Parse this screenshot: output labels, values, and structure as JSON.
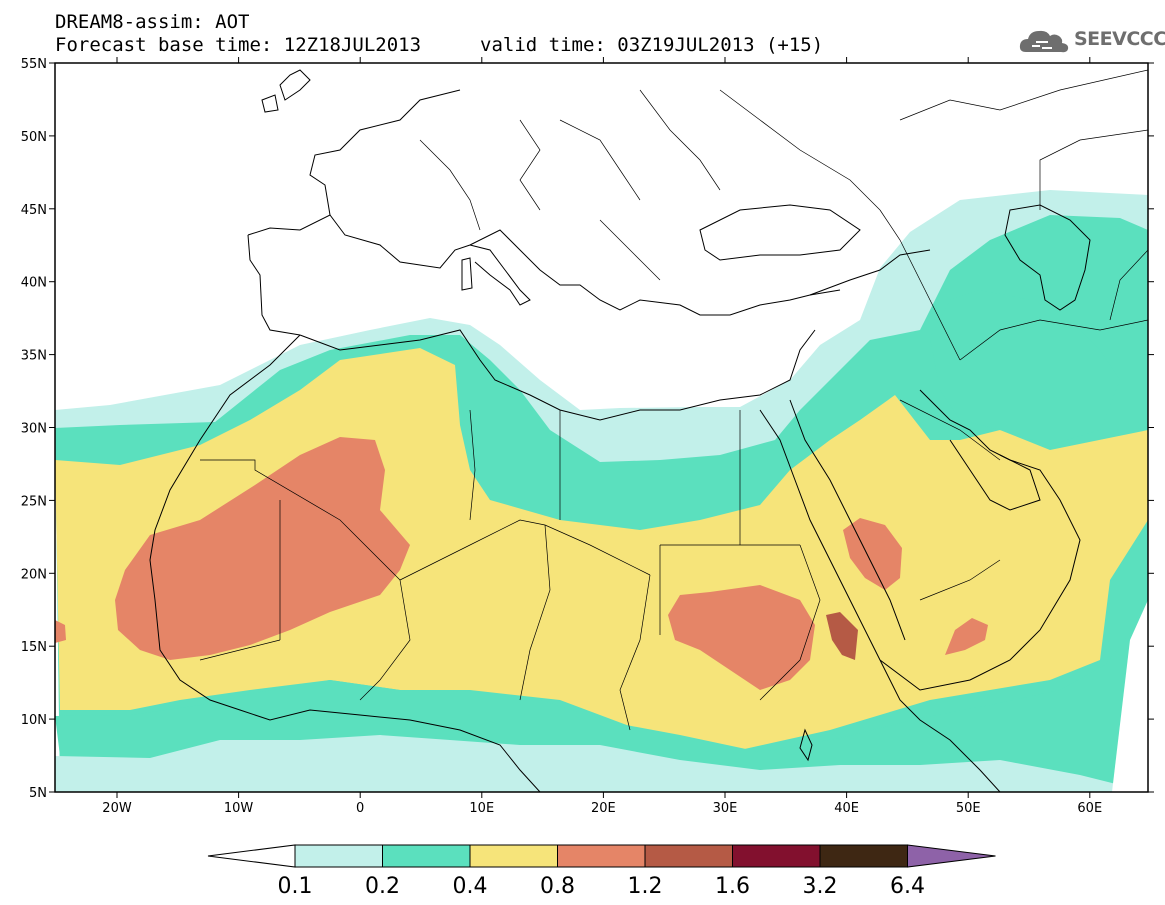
{
  "header": {
    "model": "DREAM8-assim: AOT",
    "base_time": "Forecast base time: 12Z18JUL2013",
    "valid_time": "valid time: 03Z19JUL2013 (+15)"
  },
  "logo": {
    "text": "SEEVCCC",
    "icon": "cloud-icon"
  },
  "map": {
    "lat_labels": [
      "55N",
      "50N",
      "45N",
      "40N",
      "35N",
      "30N",
      "25N",
      "20N",
      "15N",
      "10N",
      "5N"
    ],
    "lon_labels": [
      "20W",
      "10W",
      "0",
      "10E",
      "20E",
      "30E",
      "40E",
      "50E",
      "60E"
    ]
  },
  "colorbar": {
    "levels": [
      "0.1",
      "0.2",
      "0.4",
      "0.8",
      "1.2",
      "1.6",
      "3.2",
      "6.4"
    ],
    "colors": [
      "#ffffff",
      "#c2f0ea",
      "#5be0be",
      "#f6e47a",
      "#e58567",
      "#b55a45",
      "#82102e",
      "#3e2713",
      "#8e62a8"
    ]
  }
}
